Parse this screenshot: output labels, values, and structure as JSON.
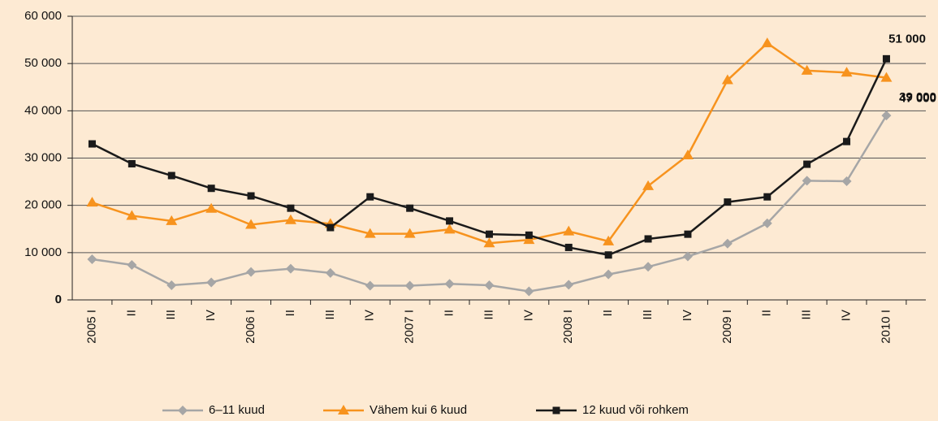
{
  "chart_data": {
    "type": "line",
    "categories": [
      "2005 I",
      "II",
      "III",
      "IV",
      "2006 I",
      "II",
      "III",
      "IV",
      "2007 I",
      "II",
      "III",
      "IV",
      "2008 I",
      "II",
      "III",
      "IV",
      "2009 I",
      "II",
      "III",
      "IV",
      "2010 I"
    ],
    "series": [
      {
        "name": "6–11 kuud",
        "color": "#a6a6a6",
        "marker": "diamond",
        "values": [
          8600,
          7400,
          3100,
          3700,
          5900,
          6600,
          5700,
          3000,
          3000,
          3400,
          3100,
          1800,
          3200,
          5400,
          7000,
          9200,
          11900,
          16200,
          25200,
          25100,
          39000
        ],
        "value_labels": [
          null,
          null,
          null,
          null,
          null,
          null,
          null,
          null,
          null,
          null,
          null,
          null,
          null,
          null,
          null,
          null,
          null,
          null,
          null,
          null,
          "39 000"
        ]
      },
      {
        "name": "Vähem kui 6 kuud",
        "color": "#f7931e",
        "marker": "triangle",
        "values": [
          20600,
          17800,
          16700,
          19300,
          15900,
          16900,
          16100,
          14000,
          14000,
          14900,
          12000,
          12700,
          14500,
          12400,
          24100,
          30600,
          46500,
          54300,
          48500,
          48100,
          47000
        ],
        "value_labels": [
          null,
          null,
          null,
          null,
          null,
          null,
          null,
          null,
          null,
          null,
          null,
          null,
          null,
          null,
          null,
          null,
          null,
          null,
          null,
          null,
          "47 000"
        ]
      },
      {
        "name": "12 kuud või rohkem",
        "color": "#1a1a1a",
        "marker": "square",
        "values": [
          33000,
          28800,
          26300,
          23600,
          22000,
          19400,
          15300,
          21800,
          19400,
          16700,
          13900,
          13700,
          11100,
          9500,
          12900,
          13900,
          20700,
          21800,
          28700,
          33500,
          51000
        ],
        "value_labels": [
          null,
          null,
          null,
          null,
          null,
          null,
          null,
          null,
          null,
          null,
          null,
          null,
          null,
          null,
          null,
          null,
          null,
          null,
          null,
          null,
          "51 000"
        ]
      }
    ],
    "ylim": [
      0,
      60000
    ],
    "yticks": [
      0,
      {
        "value": 10000,
        "label": "10 000"
      },
      {
        "value": 20000,
        "label": "20 000"
      },
      {
        "value": 30000,
        "label": "30 000"
      },
      {
        "value": 40000,
        "label": "40 000"
      },
      {
        "value": 50000,
        "label": "50 000"
      },
      {
        "value": 60000,
        "label": "60 000"
      }
    ],
    "grid": true
  }
}
